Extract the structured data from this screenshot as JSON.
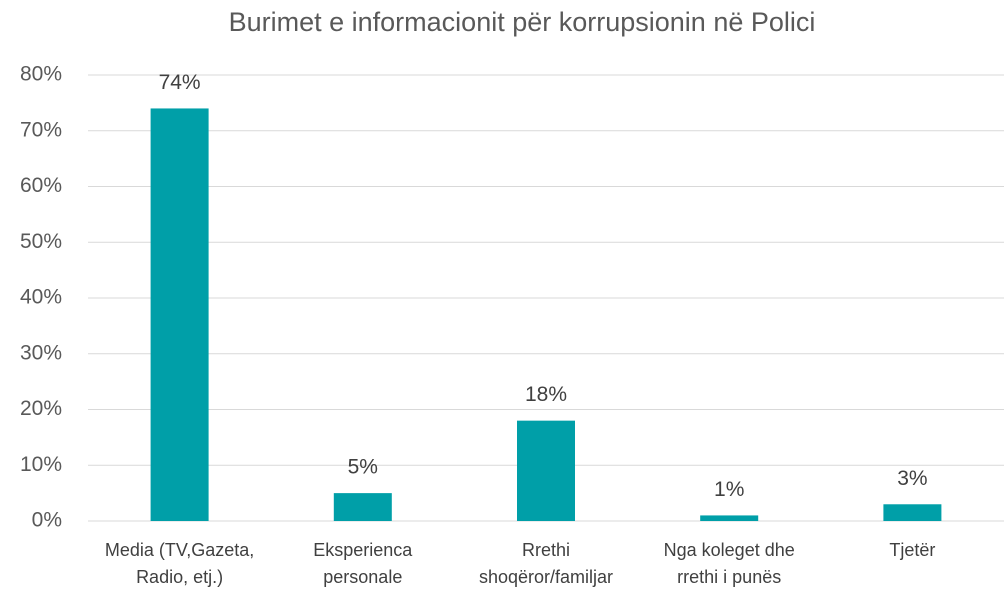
{
  "chart_data": {
    "type": "bar",
    "title": "Burimet e informacionit për korrupsionin në Polici",
    "categories": [
      [
        "Media (TV,Gazeta,",
        "Radio, etj.)"
      ],
      [
        "Eksperienca",
        "personale"
      ],
      [
        "Rrethi",
        "shoqëror/familjar"
      ],
      [
        "Nga koleget dhe",
        "rrethi i punës"
      ],
      [
        "Tjetër"
      ]
    ],
    "values": [
      74,
      5,
      18,
      1,
      3
    ],
    "value_labels": [
      "74%",
      "5%",
      "18%",
      "1%",
      "3%"
    ],
    "color": "#009fa8",
    "ylim": [
      0,
      80
    ],
    "yticks": [
      {
        "value": 0,
        "label": "0%"
      },
      {
        "value": 10,
        "label": "10%"
      },
      {
        "value": 20,
        "label": "20%"
      },
      {
        "value": 30,
        "label": "30%"
      },
      {
        "value": 40,
        "label": "40%"
      },
      {
        "value": 50,
        "label": "50%"
      },
      {
        "value": 60,
        "label": "60%"
      },
      {
        "value": 70,
        "label": "70%"
      },
      {
        "value": 80,
        "label": "80%"
      }
    ],
    "grid": true
  }
}
